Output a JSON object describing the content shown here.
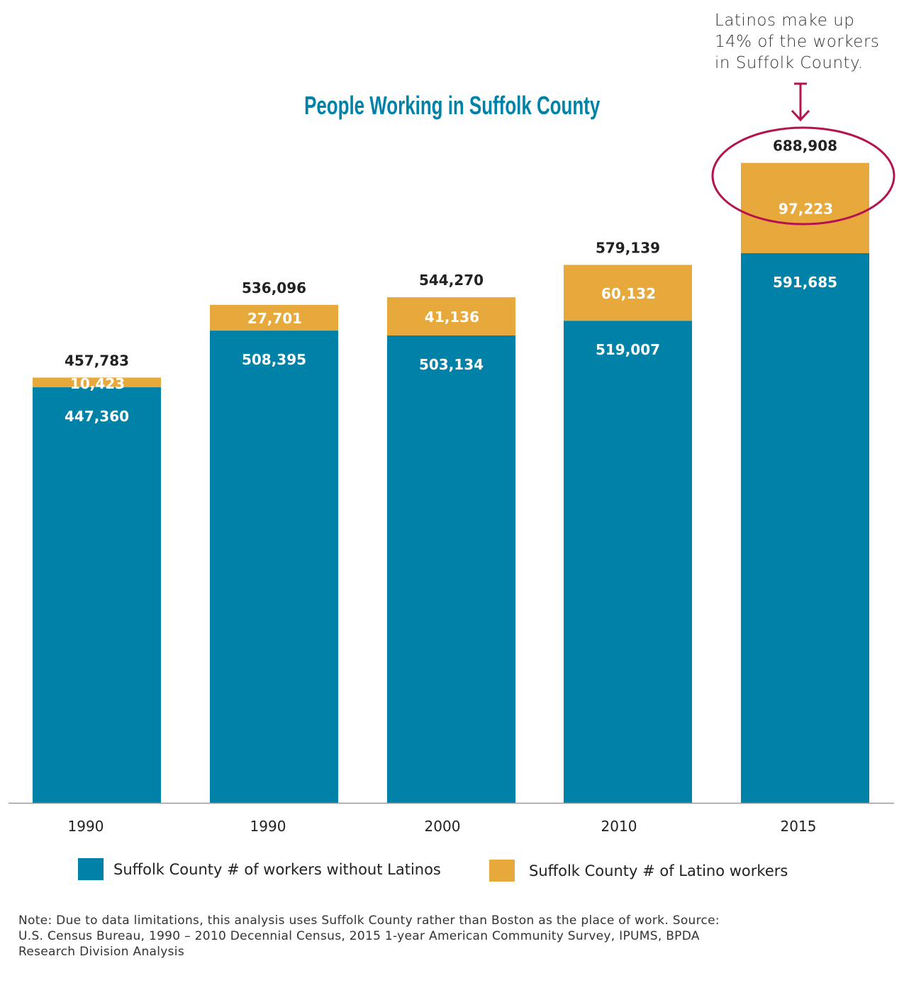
{
  "chart_data": {
    "type": "bar",
    "stacked": true,
    "title": "People Working in Suffolk County",
    "categories": [
      "1990",
      "1990",
      "2000",
      "2010",
      "2015"
    ],
    "series": [
      {
        "name": "Suffolk County # of workers without Latinos",
        "color": "#0082a8",
        "values": [
          447360,
          508395,
          503134,
          519007,
          591685
        ]
      },
      {
        "name": "Suffolk County # of Latino workers",
        "color": "#e8a93c",
        "values": [
          10423,
          27701,
          41136,
          60132,
          97223
        ]
      }
    ],
    "totals": [
      457783,
      536096,
      544270,
      579139,
      688908
    ],
    "value_labels": {
      "base": [
        "447,360",
        "508,395",
        "503,134",
        "519,007",
        "591,685"
      ],
      "latino": [
        "10,423",
        "27,701",
        "41,136",
        "60,132",
        "97,223"
      ],
      "total": [
        "457,783",
        "536,096",
        "544,270",
        "579,139",
        "688,908"
      ]
    },
    "legend_placement": "bottom",
    "grid": false,
    "annotation": {
      "lines": [
        "Latinos make up",
        "14% of the workers",
        "in Suffolk County."
      ],
      "target_category_index": 4,
      "color": "#b5134f"
    }
  },
  "note": "Note: Due to data limitations, this analysis uses Suffolk County rather than Boston as the place of work. Source: U.S. Census Bureau, 1990 – 2010 Decennial Census, 2015 1-year American Community Survey, IPUMS, BPDA Research Division Analysis"
}
